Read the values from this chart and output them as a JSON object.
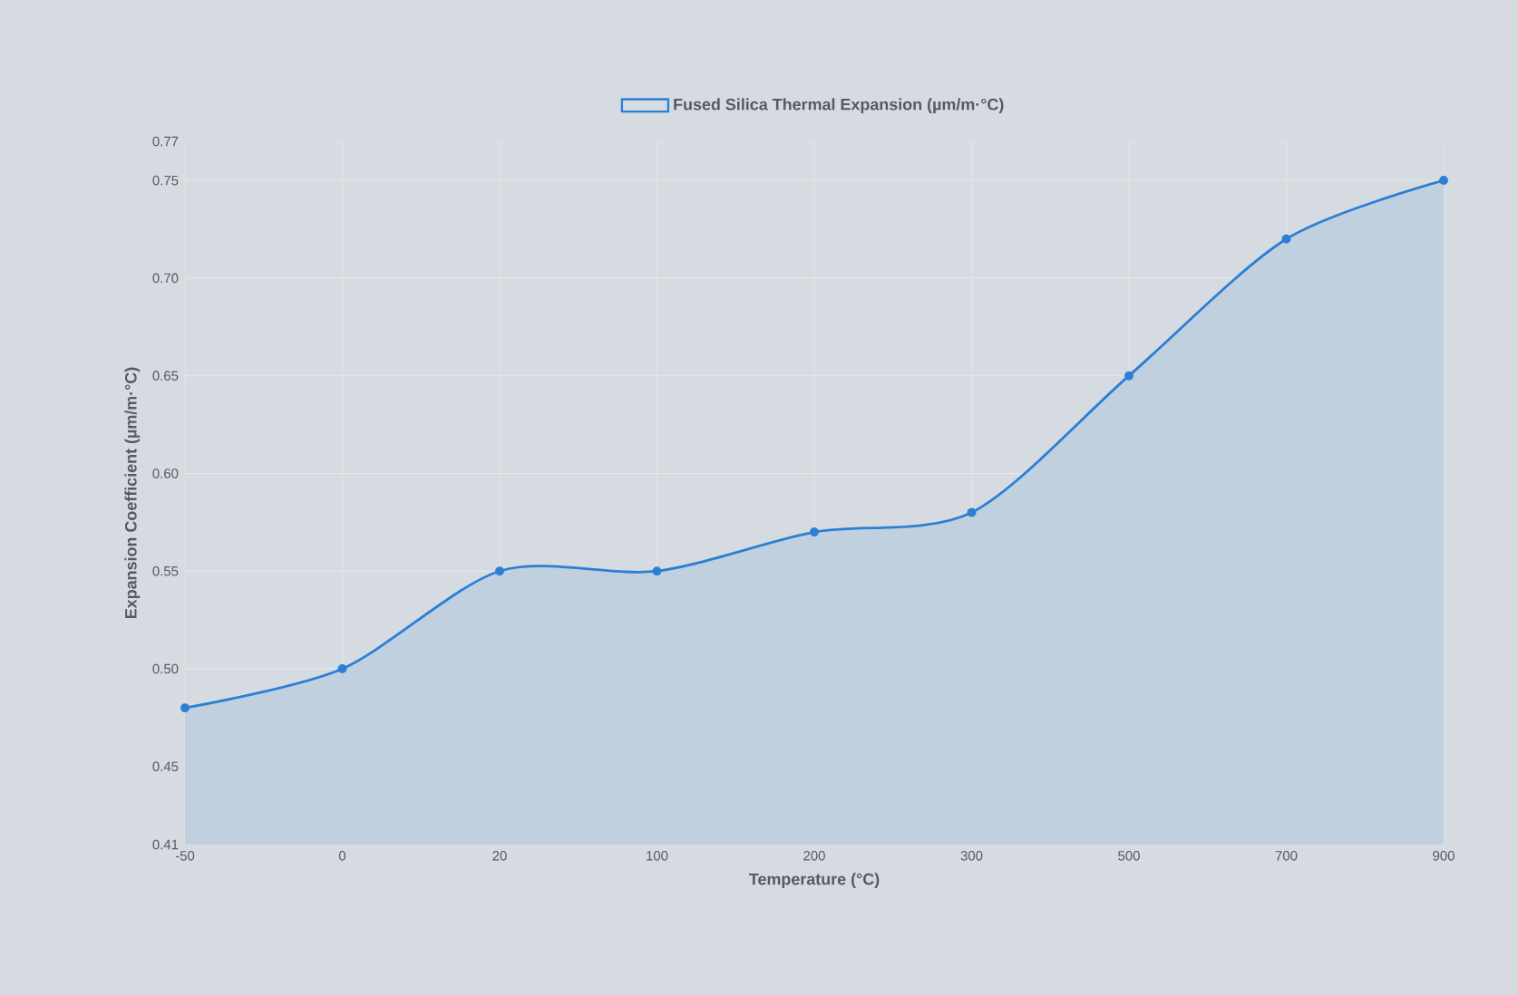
{
  "chart_data": {
    "type": "area",
    "xlabel": "Temperature (°C)",
    "ylabel": "Expansion Coefficient (µm/m·°C)",
    "categories": [
      "-50",
      "0",
      "20",
      "100",
      "200",
      "300",
      "500",
      "700",
      "900"
    ],
    "series": [
      {
        "name": "Fused Silica Thermal Expansion (µm/m·°C)",
        "color": "#2b7fd4",
        "values": [
          0.48,
          0.5,
          0.55,
          0.55,
          0.57,
          0.58,
          0.65,
          0.72,
          0.75
        ]
      }
    ],
    "ylim": [
      0.41,
      0.77
    ],
    "yticks": [
      0.41,
      0.45,
      {
        "value": 0.5,
        "label": "0.50"
      },
      0.55,
      {
        "value": 0.6,
        "label": "0.60"
      },
      0.65,
      {
        "value": 0.7,
        "label": "0.70"
      },
      0.75,
      0.77
    ],
    "grid": true,
    "legend": "top",
    "marker": "circle",
    "line_style": "solid"
  }
}
